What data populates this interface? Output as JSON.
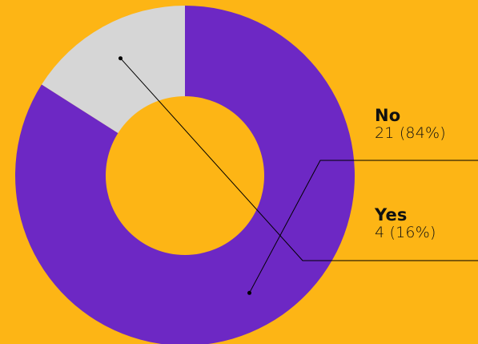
{
  "colors": {
    "background": "#FDB515",
    "no": "#6D28C4",
    "yes": "#D6D6D6",
    "line": "#000000"
  },
  "chart_data": {
    "type": "pie",
    "style": "donut",
    "categories": [
      "No",
      "Yes"
    ],
    "values": [
      21,
      4
    ],
    "percentages": [
      84,
      16
    ],
    "labels": [
      {
        "name": "No",
        "value_text": "21 (84%)"
      },
      {
        "name": "Yes",
        "value_text": "4 (16%)"
      }
    ],
    "start_angle_deg": 0,
    "direction": "clockwise",
    "legend": "right"
  }
}
